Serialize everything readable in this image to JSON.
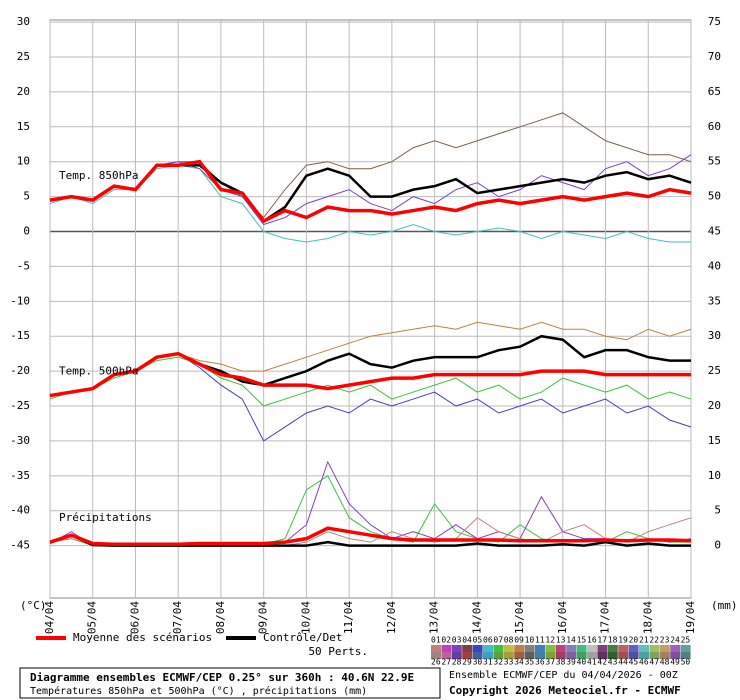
{
  "chart_data": {
    "type": "line",
    "x": [
      0,
      12,
      24,
      36,
      48,
      60,
      72,
      84,
      96,
      108,
      120,
      132,
      144,
      156,
      168,
      180,
      192,
      204,
      216,
      228,
      240,
      252,
      264,
      276,
      288,
      300,
      312,
      324,
      336,
      348,
      360
    ],
    "xlim": [
      0,
      360
    ],
    "xticks": [
      {
        "value": 0,
        "label": "04/04"
      },
      {
        "value": 24,
        "label": "05/04"
      },
      {
        "value": 48,
        "label": "06/04"
      },
      {
        "value": 72,
        "label": "07/04"
      },
      {
        "value": 96,
        "label": "08/04"
      },
      {
        "value": 120,
        "label": "09/04"
      },
      {
        "value": 144,
        "label": "10/04"
      },
      {
        "value": 168,
        "label": "11/04"
      },
      {
        "value": 192,
        "label": "12/04"
      },
      {
        "value": 216,
        "label": "13/04"
      },
      {
        "value": 240,
        "label": "14/04"
      },
      {
        "value": 264,
        "label": "15/04"
      },
      {
        "value": 288,
        "label": "16/04"
      },
      {
        "value": 312,
        "label": "17/04"
      },
      {
        "value": 336,
        "label": "18/04"
      },
      {
        "value": 360,
        "label": "19/04"
      }
    ],
    "ylabel": "(°C)",
    "y2label": "(mm)",
    "ylim": [
      -52.5,
      30.3
    ],
    "yticks": [
      30,
      25,
      20,
      15,
      10,
      5,
      0,
      -5,
      -10,
      -15,
      -20,
      -25,
      -30,
      -35,
      -40,
      -45
    ],
    "y2lim": [
      -7.5,
      75.3
    ],
    "y2ticks": [
      75,
      70,
      65,
      60,
      55,
      50,
      45,
      40,
      35,
      30,
      25,
      20,
      15,
      10,
      5,
      0
    ],
    "grid": true,
    "legend": [
      {
        "name": "Moyenne des scénarios",
        "color": "#ff0000"
      },
      {
        "name": "Contrôle/Det",
        "color": "#000000"
      }
    ],
    "panels": [
      {
        "label": "Temp. 850hPa",
        "axis": "y",
        "mean": [
          4.5,
          5,
          4.5,
          6.5,
          6,
          9.5,
          9.5,
          10,
          6,
          5.5,
          1.5,
          3,
          2,
          3.5,
          3,
          3,
          2.5,
          3,
          3.5,
          3,
          4,
          4.5,
          4,
          4.5,
          5,
          4.5,
          5,
          5.5,
          5,
          6,
          5.5
        ],
        "control": [
          4.5,
          5,
          4.5,
          6.5,
          6,
          9.5,
          9.5,
          9.5,
          7,
          5.5,
          1.5,
          3.5,
          8,
          9,
          8,
          5,
          5,
          6,
          6.5,
          7.5,
          5.5,
          6,
          6.5,
          7,
          7.5,
          7,
          8,
          8.5,
          7.5,
          8,
          7
        ],
        "members": [
          {
            "color": "#806040",
            "values": [
              4.5,
              5,
              4.5,
              6.5,
              6,
              9.5,
              10,
              10,
              7,
              5,
              2,
              6,
              9.5,
              10,
              9,
              9,
              10,
              12,
              13,
              12,
              13,
              14,
              15,
              16,
              17,
              15,
              13,
              12,
              11,
              11,
              10
            ]
          },
          {
            "color": "#40c0c0",
            "values": [
              4,
              5,
              4,
              6,
              6,
              9,
              9.5,
              9,
              5,
              4,
              0,
              -1,
              -1.5,
              -1,
              0,
              -0.5,
              0,
              1,
              0,
              -0.5,
              0,
              0.5,
              0,
              -1,
              0,
              -0.5,
              -1,
              0,
              -1,
              -1.5,
              -1.5
            ]
          },
          {
            "color": "#8040c0",
            "values": [
              4.5,
              5,
              4.5,
              6.5,
              6,
              9.5,
              10,
              9,
              6,
              5,
              1,
              2,
              4,
              5,
              6,
              4,
              3,
              5,
              4,
              6,
              7,
              5,
              6,
              8,
              7,
              6,
              9,
              10,
              8,
              9,
              11
            ]
          }
        ]
      },
      {
        "label": "Temp. 500hPa",
        "axis": "y",
        "mean": [
          -23.5,
          -23,
          -22.5,
          -20.5,
          -20,
          -18,
          -17.5,
          -19,
          -20.5,
          -21,
          -22,
          -22,
          -22,
          -22.5,
          -22,
          -21.5,
          -21,
          -21,
          -20.5,
          -20.5,
          -20.5,
          -20.5,
          -20.5,
          -20,
          -20,
          -20,
          -20.5,
          -20.5,
          -20.5,
          -20.5,
          -20.5
        ],
        "control": [
          -23.5,
          -23,
          -22.5,
          -20.5,
          -20,
          -18,
          -17.5,
          -19,
          -20,
          -21.5,
          -22,
          -21,
          -20,
          -18.5,
          -17.5,
          -19,
          -19.5,
          -18.5,
          -18,
          -18,
          -18,
          -17,
          -16.5,
          -15,
          -15.5,
          -18,
          -17,
          -17,
          -18,
          -18.5,
          -18.5
        ],
        "members": [
          {
            "color": "#c08040",
            "values": [
              -23.5,
              -23,
              -22.5,
              -20.5,
              -20,
              -18,
              -17.5,
              -18.5,
              -19,
              -20,
              -20,
              -19,
              -18,
              -17,
              -16,
              -15,
              -14.5,
              -14,
              -13.5,
              -14,
              -13,
              -13.5,
              -14,
              -13,
              -14,
              -14,
              -15,
              -15.5,
              -14,
              -15,
              -14
            ]
          },
          {
            "color": "#4040c0",
            "values": [
              -23.5,
              -23,
              -22.5,
              -20.5,
              -20,
              -18,
              -17.5,
              -19.5,
              -22,
              -24,
              -30,
              -28,
              -26,
              -25,
              -26,
              -24,
              -25,
              -24,
              -23,
              -25,
              -24,
              -26,
              -25,
              -24,
              -26,
              -25,
              -24,
              -26,
              -25,
              -27,
              -28
            ]
          },
          {
            "color": "#40c040",
            "values": [
              -24,
              -23,
              -22.5,
              -21,
              -20,
              -18.5,
              -18,
              -19,
              -21,
              -22,
              -25,
              -24,
              -23,
              -22,
              -23,
              -22,
              -24,
              -23,
              -22,
              -21,
              -23,
              -22,
              -24,
              -23,
              -21,
              -22,
              -23,
              -22,
              -24,
              -23,
              -24
            ]
          }
        ]
      },
      {
        "label": "Précipitations",
        "axis": "y2",
        "mean": [
          0.5,
          1.5,
          0.3,
          0.2,
          0.2,
          0.2,
          0.2,
          0.3,
          0.3,
          0.3,
          0.3,
          0.5,
          1,
          2.5,
          2,
          1.5,
          1,
          0.8,
          0.8,
          0.8,
          0.8,
          0.8,
          0.7,
          0.7,
          0.7,
          0.7,
          0.8,
          0.7,
          0.8,
          0.8,
          0.7
        ],
        "control": [
          0.5,
          1.5,
          0.1,
          0,
          0,
          0,
          0,
          0,
          0,
          0,
          0,
          0,
          0,
          0.5,
          0,
          0,
          0,
          0,
          0,
          0,
          0.3,
          0,
          0,
          0,
          0.2,
          0,
          0.5,
          0,
          0.3,
          0,
          0
        ],
        "members": [
          {
            "color": "#40c040",
            "values": [
              0.5,
              1,
              0,
              0,
              0,
              0,
              0,
              0,
              0,
              0,
              0.2,
              1,
              8,
              10,
              4,
              2,
              1,
              0.5,
              6,
              2,
              1,
              0.5,
              3,
              1,
              0.5,
              1,
              0.5,
              2,
              1,
              0.5,
              0.5
            ]
          },
          {
            "color": "#8040c0",
            "values": [
              0.3,
              2,
              0,
              0,
              0,
              0,
              0,
              0,
              0,
              0,
              0,
              0.5,
              3,
              12,
              6,
              3,
              1,
              2,
              1,
              3,
              1,
              2,
              1,
              7,
              2,
              1,
              1,
              0.5,
              1,
              0.5,
              1
            ]
          },
          {
            "color": "#c08080",
            "values": [
              0.5,
              1,
              0.2,
              0,
              0,
              0,
              0,
              0.1,
              0,
              0.1,
              0,
              0,
              0.5,
              2,
              1,
              0.5,
              2,
              1,
              0.5,
              1,
              4,
              2,
              1,
              0.5,
              2,
              3,
              1,
              0.5,
              2,
              3,
              4
            ]
          }
        ]
      }
    ],
    "members_title": "50 Perts.",
    "members_legend": [
      {
        "label": "01",
        "color": "#c08080"
      },
      {
        "label": "02",
        "color": "#c040c0"
      },
      {
        "label": "03",
        "color": "#8040c0"
      },
      {
        "label": "04",
        "color": "#804040"
      },
      {
        "label": "05",
        "color": "#4040c0"
      },
      {
        "label": "06",
        "color": "#40c0c0"
      },
      {
        "label": "07",
        "color": "#40c040"
      },
      {
        "label": "08",
        "color": "#c0c040"
      },
      {
        "label": "09",
        "color": "#c08040"
      },
      {
        "label": "10",
        "color": "#808080"
      },
      {
        "label": "11",
        "color": "#4080c0"
      },
      {
        "label": "12",
        "color": "#80c040"
      },
      {
        "label": "13",
        "color": "#c04080"
      },
      {
        "label": "14",
        "color": "#8080c0"
      },
      {
        "label": "15",
        "color": "#40c080"
      },
      {
        "label": "16",
        "color": "#c0c0c0"
      },
      {
        "label": "17",
        "color": "#804080"
      },
      {
        "label": "18",
        "color": "#408040"
      },
      {
        "label": "19",
        "color": "#c06060"
      },
      {
        "label": "20",
        "color": "#6060c0"
      },
      {
        "label": "21",
        "color": "#60c0c0"
      },
      {
        "label": "22",
        "color": "#a0c060"
      },
      {
        "label": "23",
        "color": "#c0a060"
      },
      {
        "label": "24",
        "color": "#a060c0"
      },
      {
        "label": "25",
        "color": "#60a0a0"
      },
      {
        "label": "26",
        "color": "#a08080"
      },
      {
        "label": "27",
        "color": "#c060a0"
      },
      {
        "label": "28",
        "color": "#6040a0"
      },
      {
        "label": "29",
        "color": "#a04040"
      },
      {
        "label": "30",
        "color": "#4060a0"
      },
      {
        "label": "31",
        "color": "#40a0c0"
      },
      {
        "label": "32",
        "color": "#60a040"
      },
      {
        "label": "33",
        "color": "#a0a040"
      },
      {
        "label": "34",
        "color": "#a06040"
      },
      {
        "label": "35",
        "color": "#606060"
      },
      {
        "label": "36",
        "color": "#4080a0"
      },
      {
        "label": "37",
        "color": "#80a040"
      },
      {
        "label": "38",
        "color": "#a04060"
      },
      {
        "label": "39",
        "color": "#8060a0"
      },
      {
        "label": "40",
        "color": "#40a060"
      },
      {
        "label": "41",
        "color": "#a0a0a0"
      },
      {
        "label": "42",
        "color": "#603060"
      },
      {
        "label": "43",
        "color": "#306030"
      },
      {
        "label": "44",
        "color": "#a05050"
      },
      {
        "label": "45",
        "color": "#5050a0"
      },
      {
        "label": "46",
        "color": "#50a0a0"
      },
      {
        "label": "47",
        "color": "#80a060"
      },
      {
        "label": "48",
        "color": "#a08060"
      },
      {
        "label": "49",
        "color": "#8050a0"
      },
      {
        "label": "50",
        "color": "#508080"
      }
    ],
    "footer": {
      "title": "Diagramme ensembles ECMWF/CEP 0.25° sur 360h : 40.6N 22.9E",
      "subtitle": "Températures 850hPa et 500hPa (°C) , précipitations (mm)",
      "run": "Ensemble ECMWF/CEP du 04/04/2026 - 00Z",
      "copyright": "Copyright 2026 Meteociel.fr - ECMWF"
    }
  }
}
